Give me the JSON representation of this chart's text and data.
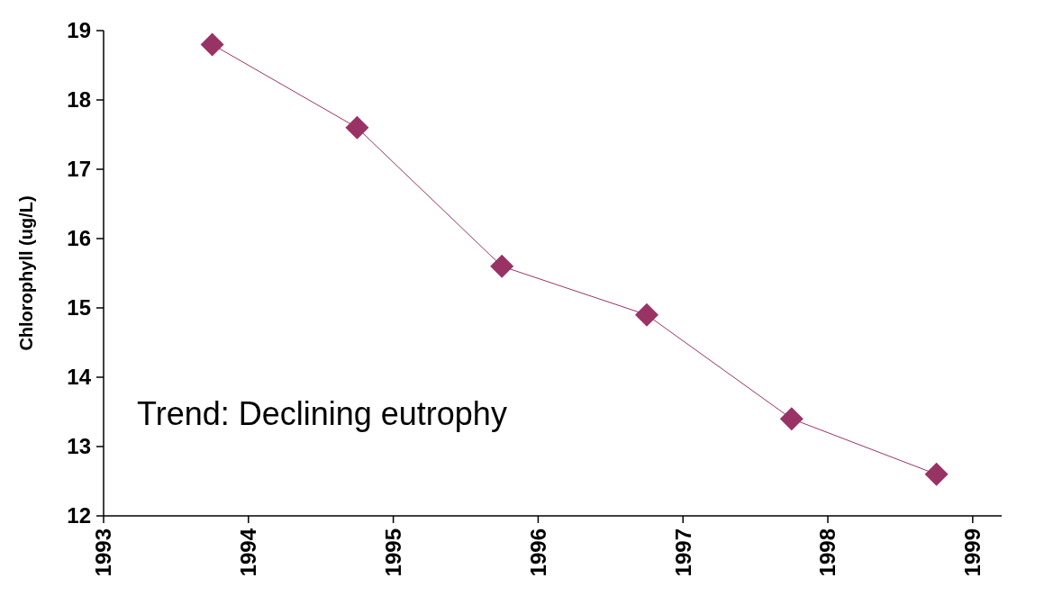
{
  "chart_data": {
    "type": "line",
    "ylabel": "Chlorophyll (ug/L)",
    "x": [
      1993.75,
      1994.75,
      1995.75,
      1996.75,
      1997.75,
      1998.75
    ],
    "series": [
      {
        "color": "#993366",
        "values": [
          18.8,
          17.6,
          15.6,
          14.9,
          13.4,
          12.6
        ]
      }
    ],
    "xlim": [
      1993,
      1999.2
    ],
    "xticks": [
      1993,
      1994,
      1995,
      1996,
      1997,
      1998,
      1999
    ],
    "ylim": [
      12,
      19
    ],
    "yticks": [
      12,
      13,
      14,
      15,
      16,
      17,
      18,
      19
    ],
    "marker": "diamond",
    "line_style": "solid",
    "grid": false,
    "annotations": [
      "Trend: Declining eutrophy"
    ]
  }
}
